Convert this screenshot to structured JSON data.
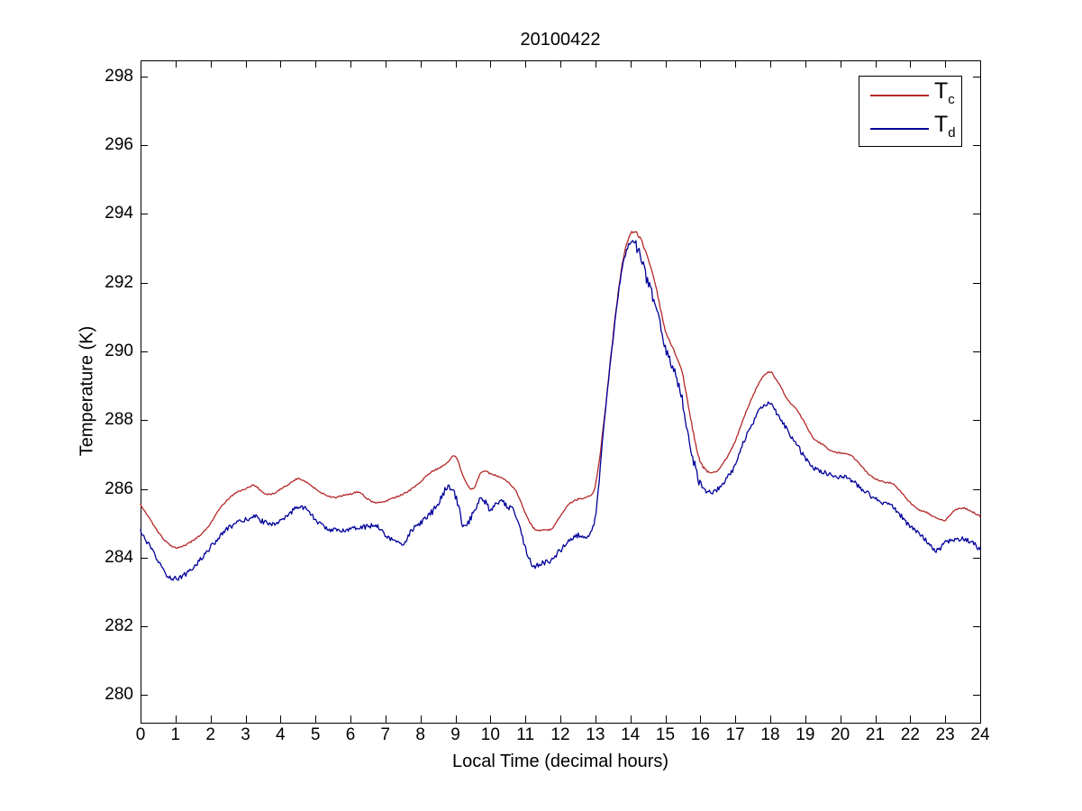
{
  "figure": {
    "background": "#ffffff",
    "axis_color": "#000000",
    "text_color": "#000000"
  },
  "chart_data": {
    "type": "line",
    "title": "20100422",
    "xlabel": "Local Time (decimal hours)",
    "ylabel": "Temperature (K)",
    "xlim": [
      0,
      24
    ],
    "ylim": [
      279.2,
      298.47
    ],
    "x_ticks": [
      0,
      1,
      2,
      3,
      4,
      5,
      6,
      7,
      8,
      9,
      10,
      11,
      12,
      13,
      14,
      15,
      16,
      17,
      18,
      19,
      20,
      21,
      22,
      23,
      24
    ],
    "y_ticks": [
      280,
      282,
      284,
      286,
      288,
      290,
      292,
      294,
      296,
      298
    ],
    "grid": false,
    "legend": {
      "position": "top-right",
      "border_color": "#000000",
      "background": "#ffffff"
    },
    "x": [
      0,
      0.25,
      0.5,
      0.75,
      1,
      1.25,
      1.5,
      1.75,
      2,
      2.25,
      2.5,
      2.75,
      3,
      3.25,
      3.5,
      3.75,
      4,
      4.25,
      4.5,
      4.75,
      5,
      5.25,
      5.5,
      5.75,
      6,
      6.25,
      6.5,
      6.75,
      7,
      7.25,
      7.5,
      7.75,
      8,
      8.25,
      8.5,
      8.75,
      9,
      9.25,
      9.5,
      9.75,
      10,
      10.25,
      10.5,
      10.75,
      11,
      11.25,
      11.5,
      11.75,
      12,
      12.25,
      12.5,
      12.75,
      13,
      13.25,
      13.5,
      13.75,
      14,
      14.25,
      14.5,
      14.75,
      15,
      15.25,
      15.5,
      15.75,
      16,
      16.25,
      16.5,
      16.75,
      17,
      17.25,
      17.5,
      17.75,
      18,
      18.25,
      18.5,
      18.75,
      19,
      19.25,
      19.5,
      19.75,
      20,
      20.25,
      20.5,
      20.75,
      21,
      21.25,
      21.5,
      21.75,
      22,
      22.25,
      22.5,
      22.75,
      23,
      23.25,
      23.5,
      23.75,
      24
    ],
    "series": [
      {
        "name": "Tc",
        "legend_main": "T",
        "legend_sub": "c",
        "color": "#b52828",
        "line_width": 1.3,
        "noise": {
          "seed": 777,
          "base": 0.022,
          "zones": [
            {
              "from": 13.0,
              "to": 16.2,
              "amp": 0.045
            }
          ]
        },
        "values": [
          285.55,
          285.15,
          284.75,
          284.45,
          284.3,
          284.35,
          284.5,
          284.7,
          285.0,
          285.4,
          285.7,
          285.9,
          286.0,
          286.1,
          285.9,
          285.85,
          286.0,
          286.15,
          286.3,
          286.2,
          286.0,
          285.85,
          285.75,
          285.8,
          285.85,
          285.9,
          285.7,
          285.6,
          285.65,
          285.75,
          285.85,
          286.0,
          286.2,
          286.45,
          286.6,
          286.75,
          286.95,
          286.3,
          286.0,
          286.5,
          286.45,
          286.35,
          286.2,
          285.9,
          285.3,
          284.85,
          284.8,
          284.85,
          285.2,
          285.55,
          285.7,
          285.75,
          286.1,
          288.0,
          290.4,
          292.4,
          293.4,
          293.35,
          292.7,
          291.8,
          290.6,
          290.0,
          289.3,
          287.9,
          286.8,
          286.5,
          286.55,
          286.9,
          287.4,
          288.1,
          288.7,
          289.2,
          289.4,
          289.05,
          288.6,
          288.3,
          287.9,
          287.45,
          287.3,
          287.1,
          287.05,
          287.0,
          286.8,
          286.5,
          286.3,
          286.2,
          286.15,
          285.9,
          285.6,
          285.4,
          285.3,
          285.15,
          285.1,
          285.35,
          285.45,
          285.35,
          285.2
        ]
      },
      {
        "name": "Td",
        "legend_main": "T",
        "legend_sub": "d",
        "color": "#000099",
        "line_width": 1.3,
        "noise": {
          "seed": 12345,
          "base": 0.07,
          "zones": [
            {
              "from": 8.3,
              "to": 12.0,
              "amp": 0.1
            },
            {
              "from": 13.0,
              "to": 14.0,
              "amp": 0.06
            },
            {
              "from": 14.0,
              "to": 16.3,
              "amp": 0.17
            }
          ]
        },
        "values": [
          284.75,
          284.35,
          283.9,
          283.5,
          283.4,
          283.5,
          283.7,
          284.0,
          284.3,
          284.6,
          284.85,
          285.0,
          285.1,
          285.2,
          285.05,
          285.0,
          285.05,
          285.25,
          285.5,
          285.4,
          285.1,
          284.9,
          284.8,
          284.8,
          284.85,
          284.9,
          284.9,
          284.95,
          284.65,
          284.5,
          284.4,
          284.8,
          285.0,
          285.25,
          285.55,
          286.0,
          285.8,
          284.9,
          285.3,
          285.75,
          285.4,
          285.6,
          285.5,
          285.2,
          284.3,
          283.75,
          283.85,
          283.95,
          284.2,
          284.5,
          284.65,
          284.6,
          285.2,
          287.9,
          290.3,
          292.3,
          293.2,
          292.9,
          292.0,
          291.2,
          290.1,
          289.4,
          288.5,
          287.1,
          286.1,
          285.9,
          286.0,
          286.3,
          286.7,
          287.4,
          287.9,
          288.4,
          288.45,
          288.1,
          287.7,
          287.3,
          286.9,
          286.6,
          286.5,
          286.4,
          286.35,
          286.3,
          286.1,
          285.9,
          285.7,
          285.6,
          285.5,
          285.2,
          284.9,
          284.7,
          284.45,
          284.2,
          284.45,
          284.5,
          284.55,
          284.45,
          284.25
        ]
      }
    ]
  }
}
